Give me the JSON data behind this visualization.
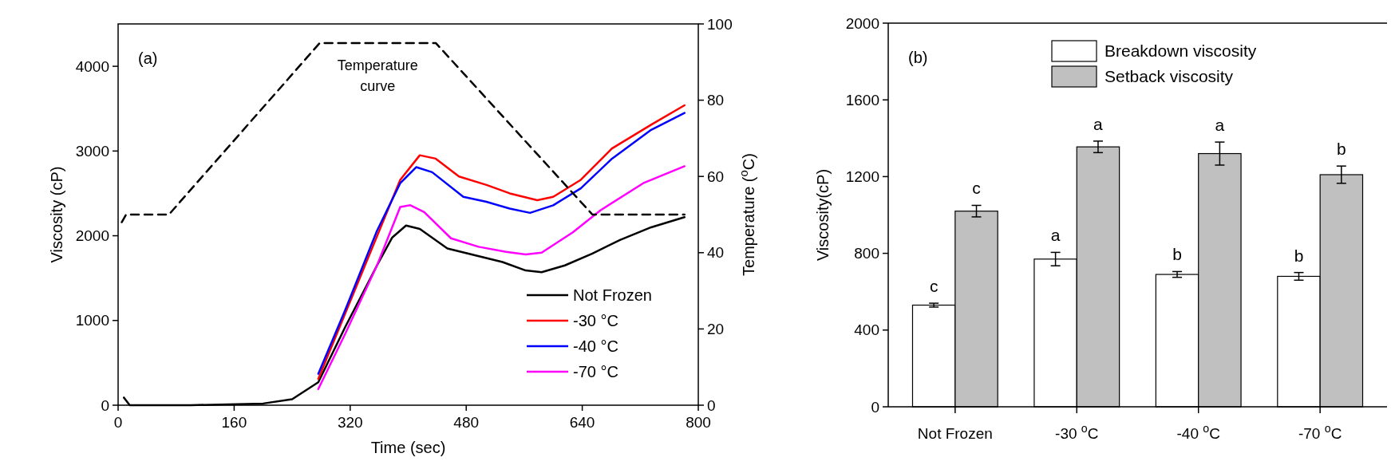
{
  "chart_data": [
    {
      "type": "line",
      "xlabel": "Time (sec)",
      "ylabel": "Viscosity (cP)",
      "y2label": "Temperature ($^{o}$C)",
      "annotations": [
        "(a)"
      ],
      "xlim": [
        0,
        800
      ],
      "xticks": [
        0,
        160,
        320,
        480,
        640,
        800
      ],
      "ylim": [
        0,
        4500
      ],
      "yticks": [
        0,
        1000,
        2000,
        3000,
        4000
      ],
      "y2lim": [
        0,
        100
      ],
      "y2ticks": [
        0,
        20,
        40,
        60,
        80,
        100
      ],
      "legend": "bottom right",
      "series": [
        {
          "name": "Not Frozen",
          "color": "#000000",
          "x": [
            8,
            16,
            100,
            200,
            240,
            276,
            313,
            357,
            378,
            397,
            416,
            454,
            492,
            530,
            562,
            584,
            616,
            654,
            692,
            735,
            781
          ],
          "values": [
            90,
            0,
            0,
            20,
            70,
            270,
            920,
            1650,
            1980,
            2120,
            2080,
            1850,
            1770,
            1690,
            1590,
            1570,
            1650,
            1790,
            1950,
            2100,
            2220
          ]
        },
        {
          "name": "-30 °C",
          "color": "#ff0000",
          "x": [
            276,
            313,
            389,
            416,
            438,
            470,
            508,
            540,
            578,
            600,
            638,
            681,
            735,
            781
          ],
          "values": [
            310,
            1080,
            2660,
            2950,
            2910,
            2700,
            2600,
            2500,
            2420,
            2460,
            2660,
            3030,
            3310,
            3540
          ]
        },
        {
          "name": "-40 °C",
          "color": "#0000ff",
          "x": [
            276,
            313,
            357,
            389,
            411,
            433,
            476,
            508,
            540,
            568,
            600,
            638,
            681,
            735,
            781
          ],
          "values": [
            370,
            1120,
            2060,
            2620,
            2810,
            2750,
            2460,
            2400,
            2320,
            2270,
            2360,
            2560,
            2910,
            3250,
            3450
          ]
        },
        {
          "name": "-70 °C",
          "color": "#ff00ff",
          "x": [
            276,
            313,
            357,
            389,
            403,
            422,
            459,
            497,
            535,
            562,
            584,
            627,
            665,
            724,
            781
          ],
          "values": [
            190,
            840,
            1650,
            2340,
            2360,
            2280,
            1970,
            1870,
            1810,
            1780,
            1800,
            2040,
            2300,
            2620,
            2820
          ]
        },
        {
          "name": "Temperature curve",
          "color": "#000000",
          "axis": "y2",
          "line_style": "dashed",
          "x": [
            5,
            11,
            70,
            278,
            438,
            654,
            781
          ],
          "values": [
            48,
            50,
            50,
            95,
            95,
            50,
            50
          ]
        }
      ]
    },
    {
      "type": "bar",
      "ylabel": "Viscosity(cP)",
      "annotations": [
        "(b)"
      ],
      "categories": [
        "Not Frozen",
        "-30 $^{o}$C",
        "-40 $^{o}$C",
        "-70 $^{o}$C"
      ],
      "ylim": [
        0,
        2000
      ],
      "yticks": [
        0,
        400,
        800,
        1200,
        1600,
        2000
      ],
      "legend": "top right",
      "series": [
        {
          "name": "Breakdown viscosity",
          "color": "#ffffff",
          "values": [
            530,
            770,
            690,
            680
          ],
          "errors": [
            10,
            35,
            15,
            20
          ],
          "value_labels": [
            "c",
            "a",
            "b",
            "b"
          ]
        },
        {
          "name": "Setback viscosity",
          "color": "#c0c0c0",
          "values": [
            1020,
            1355,
            1320,
            1210
          ],
          "errors": [
            30,
            30,
            60,
            45
          ],
          "value_labels": [
            "c",
            "a",
            "a",
            "b"
          ]
        }
      ]
    }
  ]
}
